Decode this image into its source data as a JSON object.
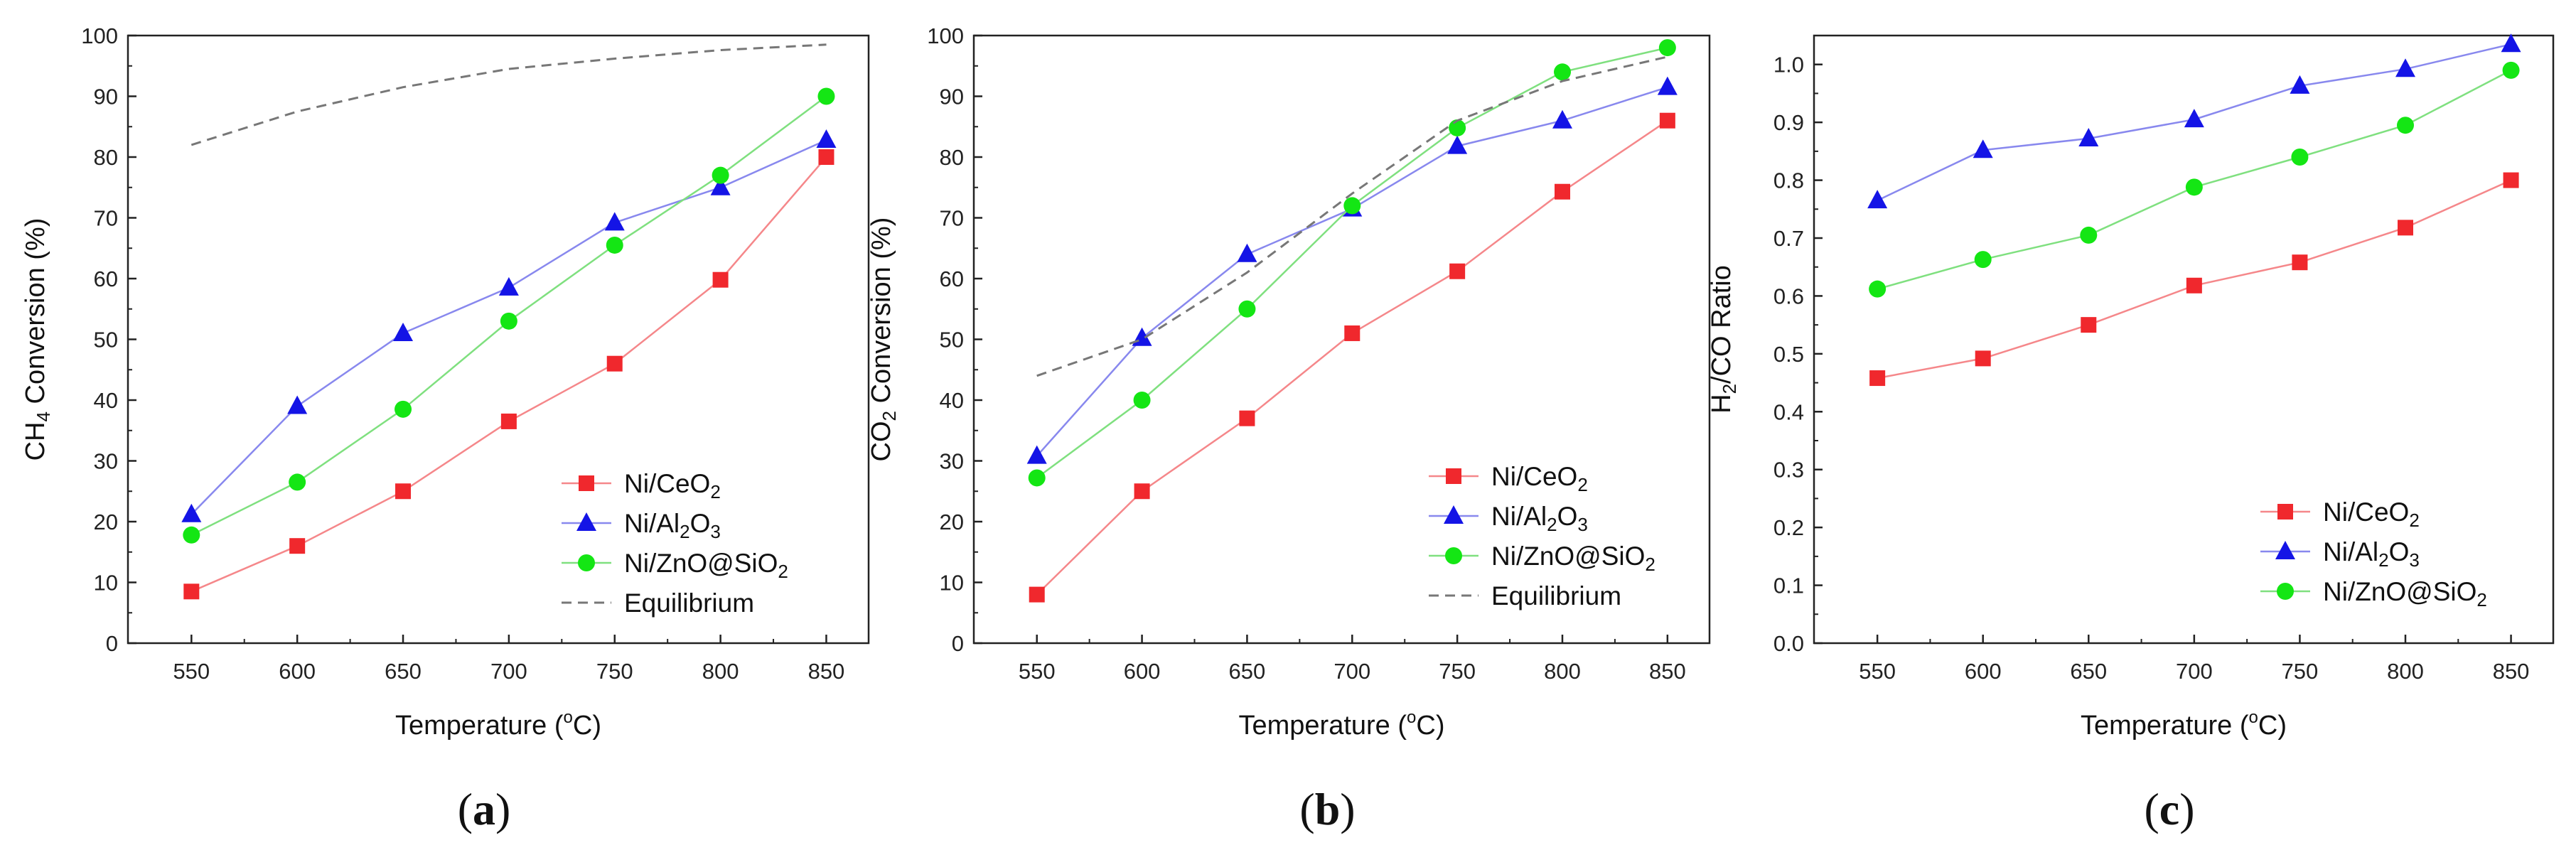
{
  "colors": {
    "Ni/CeO2": "#f0282d",
    "Ni/Al2O3": "#1414e6",
    "Ni/ZnO@SiO2": "#14e614",
    "Equilibrium": "#777777",
    "Ni/CeO2_line": "#f5878a",
    "Ni/Al2O3_line": "#8888ee",
    "Ni/ZnO@SiO2_line": "#7fe07f"
  },
  "series_styles": {
    "Ni/CeO2": "square",
    "Ni/Al2O3": "triangle",
    "Ni/ZnO@SiO2": "circle",
    "Equilibrium": "dashed"
  },
  "chart_data": [
    {
      "id": "a",
      "caption": "(a)",
      "type": "line",
      "xlabel": {
        "base": "Temperature (",
        "sup": "o",
        "tail": "C)"
      },
      "ylabel": {
        "base": "CH",
        "sub": "4",
        "tail": " Conversion (%)"
      },
      "x": [
        550,
        600,
        650,
        700,
        750,
        800,
        850
      ],
      "xlim": [
        520,
        870
      ],
      "xticks": [
        550,
        600,
        650,
        700,
        750,
        800,
        850
      ],
      "ylim": [
        0,
        100
      ],
      "yticks": [
        0,
        10,
        20,
        30,
        40,
        50,
        60,
        70,
        80,
        90,
        100
      ],
      "ytick_decimals": 0,
      "legend_position": "bottom-right",
      "series": [
        {
          "key": "Ni/CeO2",
          "label": {
            "base": "Ni/CeO",
            "sub": "2",
            "tail": ""
          },
          "values": [
            8.5,
            16,
            25,
            36.5,
            46,
            59.8,
            80
          ]
        },
        {
          "key": "Ni/Al2O3",
          "label": {
            "base": "Ni/Al",
            "sub": "2",
            "mid": "O",
            "sub2": "3",
            "tail": ""
          },
          "values": [
            21.2,
            39,
            51,
            58.5,
            69.2,
            75,
            82.8
          ]
        },
        {
          "key": "Ni/ZnO@SiO2",
          "label": {
            "base": "Ni/ZnO@SiO",
            "sub": "2",
            "tail": ""
          },
          "values": [
            17.8,
            26.5,
            38.5,
            53,
            65.5,
            77,
            90
          ]
        },
        {
          "key": "Equilibrium",
          "label": {
            "base": "Equilibrium",
            "sub": "",
            "tail": ""
          },
          "values": [
            82,
            87.5,
            91.5,
            94.5,
            96.2,
            97.6,
            98.5
          ]
        }
      ]
    },
    {
      "id": "b",
      "caption": "(b)",
      "type": "line",
      "xlabel": {
        "base": "Temperature (",
        "sup": "o",
        "tail": "C)"
      },
      "ylabel": {
        "base": "CO",
        "sub": "2",
        "tail": " Conversion (%)"
      },
      "x": [
        550,
        600,
        650,
        700,
        750,
        800,
        850
      ],
      "xlim": [
        520,
        870
      ],
      "xticks": [
        550,
        600,
        650,
        700,
        750,
        800,
        850
      ],
      "ylim": [
        0,
        100
      ],
      "yticks": [
        0,
        10,
        20,
        30,
        40,
        50,
        60,
        70,
        80,
        90,
        100
      ],
      "ytick_decimals": 0,
      "legend_position": "bottom-right",
      "series": [
        {
          "key": "Ni/CeO2",
          "label": {
            "base": "Ni/CeO",
            "sub": "2",
            "tail": ""
          },
          "values": [
            8,
            25,
            37,
            51,
            61.2,
            74.3,
            86
          ]
        },
        {
          "key": "Ni/Al2O3",
          "label": {
            "base": "Ni/Al",
            "sub": "2",
            "mid": "O",
            "sub2": "3",
            "tail": ""
          },
          "values": [
            30.8,
            50.2,
            64,
            71.5,
            81.8,
            86,
            91.5
          ]
        },
        {
          "key": "Ni/ZnO@SiO2",
          "label": {
            "base": "Ni/ZnO@SiO",
            "sub": "2",
            "tail": ""
          },
          "values": [
            27.2,
            40,
            55,
            72,
            84.8,
            94,
            98
          ]
        },
        {
          "key": "Equilibrium",
          "label": {
            "base": "Equilibrium",
            "sub": "",
            "tail": ""
          },
          "values": [
            44,
            50,
            61,
            74,
            86,
            92.5,
            96.5
          ]
        }
      ]
    },
    {
      "id": "c",
      "caption": "(c)",
      "type": "line",
      "xlabel": {
        "base": "Temperature (",
        "sup": "o",
        "tail": "C)"
      },
      "ylabel": {
        "base": "H",
        "sub": "2",
        "tail": "/CO Ratio"
      },
      "x": [
        550,
        600,
        650,
        700,
        750,
        800,
        850
      ],
      "xlim": [
        520,
        870
      ],
      "xticks": [
        550,
        600,
        650,
        700,
        750,
        800,
        850
      ],
      "ylim": [
        0,
        1.05
      ],
      "yticks": [
        0.0,
        0.1,
        0.2,
        0.3,
        0.4,
        0.5,
        0.6,
        0.7,
        0.8,
        0.9,
        1.0
      ],
      "ytick_decimals": 1,
      "legend_position": "bottom-right",
      "series": [
        {
          "key": "Ni/CeO2",
          "label": {
            "base": "Ni/CeO",
            "sub": "2",
            "tail": ""
          },
          "values": [
            0.458,
            0.492,
            0.55,
            0.618,
            0.658,
            0.718,
            0.8
          ]
        },
        {
          "key": "Ni/Al2O3",
          "label": {
            "base": "Ni/Al",
            "sub": "2",
            "mid": "O",
            "sub2": "3",
            "tail": ""
          },
          "values": [
            0.765,
            0.852,
            0.872,
            0.905,
            0.963,
            0.992,
            1.035
          ]
        },
        {
          "key": "Ni/ZnO@SiO2",
          "label": {
            "base": "Ni/ZnO@SiO",
            "sub": "2",
            "tail": ""
          },
          "values": [
            0.612,
            0.663,
            0.705,
            0.788,
            0.84,
            0.895,
            0.99
          ]
        }
      ]
    }
  ]
}
